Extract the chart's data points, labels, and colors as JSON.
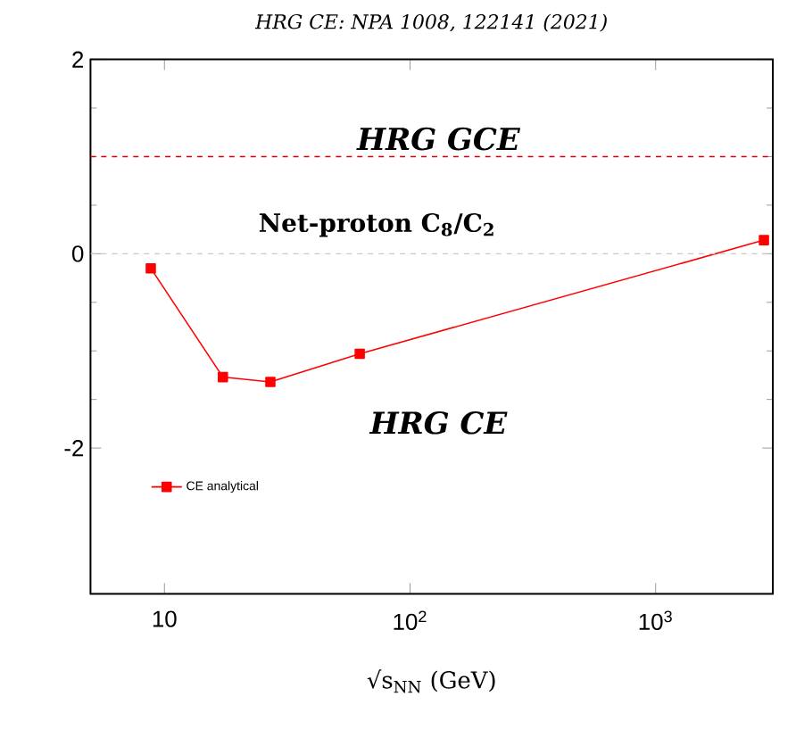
{
  "chart_data": {
    "type": "line",
    "title": "HRG CE: NPA 1008,  122141 (2021)",
    "xlabel": "√s$_{NN}$ (GeV)",
    "x": [
      8.8,
      17.3,
      27,
      62.4,
      2760
    ],
    "series": [
      {
        "name": "CE analytical",
        "color": "#ff0000",
        "values": [
          -0.15,
          -1.27,
          -1.32,
          -1.03,
          0.14
        ]
      }
    ],
    "xlim": [
      5,
      3000
    ],
    "ylim": [
      -3.5,
      2
    ],
    "xticks": [
      {
        "value": 10,
        "label": "10"
      },
      {
        "value": 100,
        "label": "10$^{2}$"
      },
      {
        "value": 1000,
        "label": "10$^{3}$"
      }
    ],
    "yticks": [
      -2,
      0,
      2
    ],
    "log": "x",
    "marker": "square",
    "line_style": "solid",
    "legend": "bottom left",
    "grid": false,
    "ref_lines": [
      {
        "axis": "y",
        "value": 1,
        "label": "HRG GCE",
        "color": "#e00000",
        "line_style": "dashed"
      },
      {
        "axis": "y",
        "value": 0,
        "color": "#c8c8c8",
        "line_style": "dashed"
      }
    ],
    "annotations": [
      "Net-proton C$_{8}$/C$_{2}$",
      "HRG CE"
    ]
  }
}
